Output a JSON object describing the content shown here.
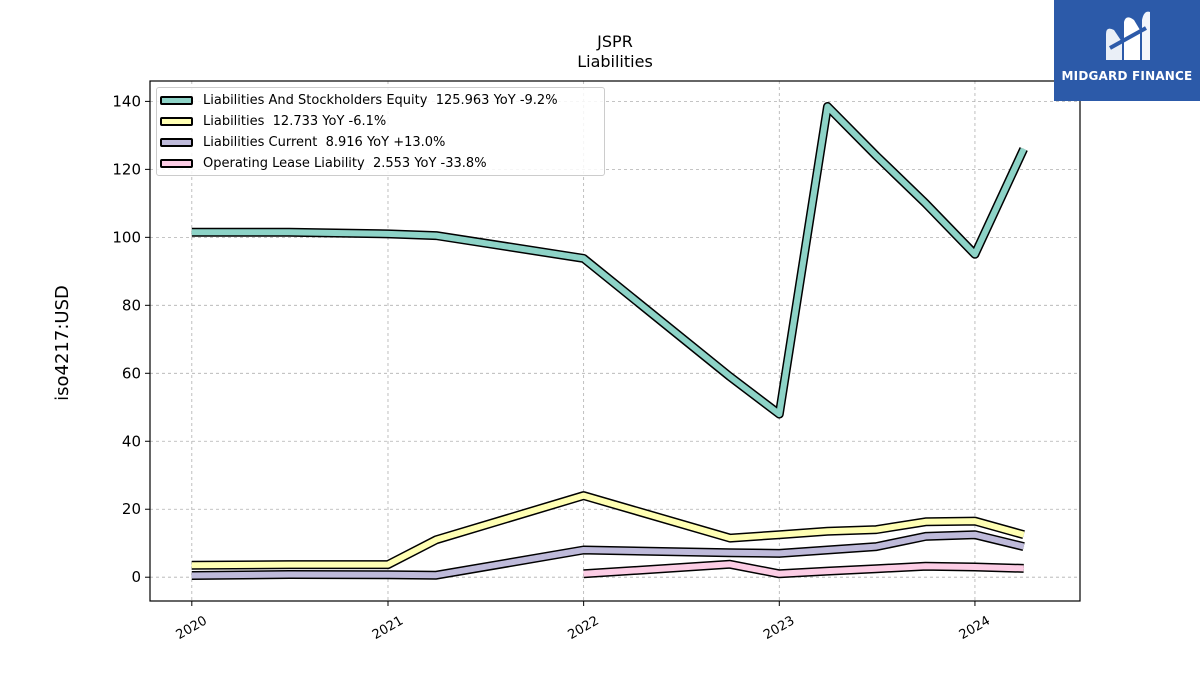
{
  "title": "JSPR",
  "subtitle": "Liabilities",
  "logo": {
    "text": "MIDGARD FINANCE",
    "icon": "midgard-m-logo"
  },
  "colors": {
    "equity": "#8dd3c7",
    "liabilities": "#ffffb3",
    "current": "#bebada",
    "lease": "#fccde5",
    "logo_bg": "#2c5aa9"
  },
  "chart_data": {
    "type": "line",
    "title": "JSPR",
    "subtitle": "Liabilities",
    "xlabel": "",
    "ylabel": "iso4217:USD",
    "xlim": [
      "2019-10-15",
      "2024-07-15"
    ],
    "ylim": [
      -7,
      146
    ],
    "x_ticks": [
      "2020",
      "2021",
      "2022",
      "2023",
      "2024"
    ],
    "y_ticks": [
      0,
      20,
      40,
      60,
      80,
      100,
      120,
      140
    ],
    "grid": true,
    "legend_position": "top-left",
    "series": [
      {
        "name": "Liabilities And Stockholders Equity  125.963 YoY -9.2%",
        "color": "#8dd3c7",
        "x": [
          "2020-01-01",
          "2020-07-01",
          "2021-01-01",
          "2021-04-01",
          "2022-01-01",
          "2022-10-01",
          "2023-01-01",
          "2023-04-01",
          "2023-07-01",
          "2023-10-01",
          "2024-01-01",
          "2024-04-01"
        ],
        "y": [
          101.5,
          101.5,
          101,
          100.5,
          93.8,
          59,
          48,
          138.5,
          124,
          110,
          95,
          126
        ]
      },
      {
        "name": "Liabilities  12.733 YoY -6.1%",
        "color": "#ffffb3",
        "x": [
          "2020-01-01",
          "2020-07-01",
          "2021-01-01",
          "2021-04-01",
          "2022-01-01",
          "2022-10-01",
          "2023-01-01",
          "2023-04-01",
          "2023-07-01",
          "2023-10-01",
          "2024-01-01",
          "2024-04-01"
        ],
        "y": [
          3.5,
          3.7,
          3.7,
          11,
          24,
          11.5,
          12.5,
          13.5,
          14,
          16.3,
          16.5,
          12.5
        ]
      },
      {
        "name": "Liabilities Current  8.916 YoY +13.0%",
        "color": "#bebada",
        "x": [
          "2020-01-01",
          "2020-07-01",
          "2021-01-01",
          "2021-04-01",
          "2022-01-01",
          "2022-10-01",
          "2023-01-01",
          "2023-04-01",
          "2023-07-01",
          "2023-10-01",
          "2024-01-01",
          "2024-04-01"
        ],
        "y": [
          0.5,
          0.8,
          0.7,
          0.6,
          8,
          7.2,
          7,
          8,
          9,
          12,
          12.5,
          9
        ]
      },
      {
        "name": "Operating Lease Liability  2.553 YoY -33.8%",
        "color": "#fccde5",
        "x": [
          "2022-01-01",
          "2022-10-01",
          "2023-01-01",
          "2023-04-01",
          "2023-07-01",
          "2023-10-01",
          "2024-01-01",
          "2024-04-01"
        ],
        "y": [
          1,
          3.8,
          1,
          1.8,
          2.5,
          3.2,
          3,
          2.6
        ]
      }
    ]
  }
}
